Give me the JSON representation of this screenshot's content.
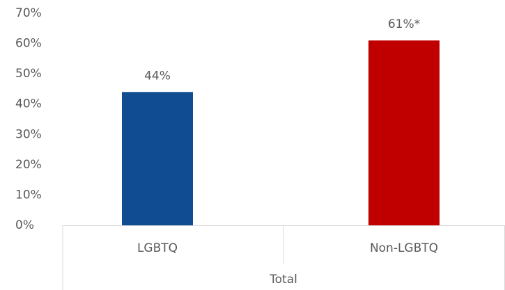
{
  "chart_data": {
    "type": "bar",
    "categories": [
      "LGBTQ",
      "Non-LGBTQ"
    ],
    "group_label": "Total",
    "values": [
      44,
      61
    ],
    "value_labels": [
      "44%",
      "61%*"
    ],
    "colors": [
      "#0f4c92",
      "#c00000"
    ],
    "ylim": [
      0,
      70
    ],
    "yticks": [
      {
        "value": 0,
        "label": "0%"
      },
      {
        "value": 10,
        "label": "10%"
      },
      {
        "value": 20,
        "label": "20%"
      },
      {
        "value": 30,
        "label": "30%"
      },
      {
        "value": 40,
        "label": "40%"
      },
      {
        "value": 50,
        "label": "50%"
      },
      {
        "value": 60,
        "label": "60%"
      },
      {
        "value": 70,
        "label": "70%"
      }
    ],
    "grid": false
  }
}
